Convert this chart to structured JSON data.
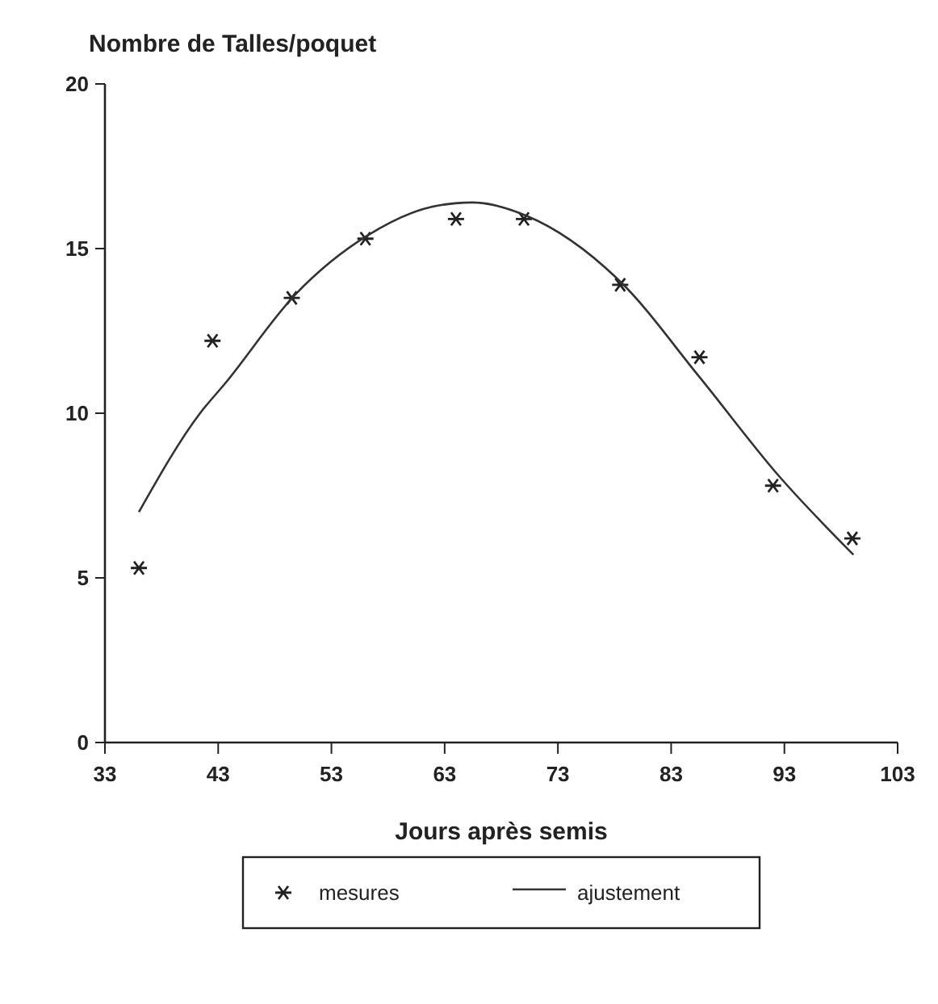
{
  "chart_data": {
    "type": "scatter",
    "ylabel": "Nombre de Talles/poquet",
    "xlabel": "Jours après semis",
    "xlim": [
      33,
      103
    ],
    "xticks": [
      33,
      43,
      53,
      63,
      73,
      83,
      93,
      103
    ],
    "ylim": [
      0,
      20
    ],
    "yticks": [
      0,
      5,
      10,
      15,
      20
    ],
    "grid": false,
    "legend": "bottom",
    "series": [
      {
        "name": "mesures",
        "marker": "cross",
        "color": "#222222",
        "x": [
          36,
          42.5,
          49.5,
          56,
          64,
          70,
          78.5,
          85.5,
          92,
          99
        ],
        "values": [
          5.3,
          12.2,
          13.5,
          15.3,
          15.9,
          15.9,
          13.9,
          11.7,
          7.8,
          6.2
        ]
      },
      {
        "name": "ajustement",
        "type": "line",
        "marker": "none",
        "line_style": "solid",
        "color": "#333333",
        "x": [
          36,
          41.4,
          43.6,
          49.8,
          56.2,
          62.3,
          65.5,
          70.2,
          78.5,
          85.5,
          92.5,
          99.1
        ],
        "values": [
          7.0,
          10,
          10.9,
          13.6,
          15.4,
          16.3,
          16.4,
          16.0,
          14.0,
          11.1,
          8.1,
          5.7
        ]
      }
    ]
  }
}
